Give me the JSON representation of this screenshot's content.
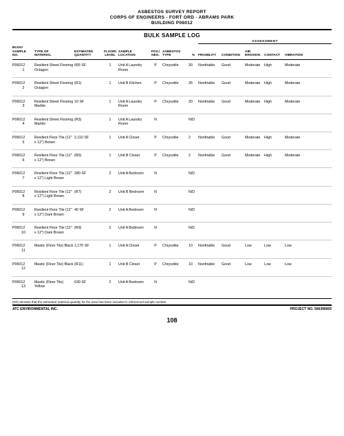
{
  "header": {
    "line1": "ASBESTOS SURVEY REPORT",
    "line2": "CORPS OF ENGINEERS - FORT ORD - ABRAMS PARK",
    "line3": "BUILDING P06012"
  },
  "title": "BULK SAMPLE LOG",
  "columns": {
    "c1a": "BLDG/",
    "c1b": "SAMPLE",
    "c1c": "NO.",
    "c2a": "TYPE OF",
    "c2b": "MATERIAL",
    "c3a": "ESTIMATED",
    "c3b": "QUANTITY",
    "c4a": "FLOOR/",
    "c4b": "LEVEL",
    "c5a": "SAMPLE",
    "c5b": "LOCATION",
    "c6a": "POS./",
    "c6b": "NEG.",
    "c7a": "ASBESTOS",
    "c7b": "TYPE",
    "c8": "%",
    "assess": "ASSESSMENT",
    "a1": "FRIABILITY",
    "a2": "CONDITION",
    "a3a": "AIR",
    "a3b": "EROSION",
    "a4": "CONTACT",
    "a5": "VIBRATION"
  },
  "rows": [
    {
      "bldg": "P06012",
      "num": "1",
      "mat": "Resilient Sheet Flooring Octagon",
      "qty": "665 SF",
      "lvl": "1",
      "loc": "Unit A Laundry Room",
      "pn": "P",
      "type": "Chrysotile",
      "pct": "30",
      "fri": "Nonfriable",
      "cond": "Good",
      "air": "Moderate",
      "con": "High",
      "vib": "Moderate"
    },
    {
      "bldg": "P06012",
      "num": "2",
      "mat": "Resilient Sheet Flooring Octagon",
      "qty": "(R1)",
      "lvl": "1",
      "loc": "Unit B Kitchen",
      "pn": "P",
      "type": "Chrysotile",
      "pct": "35",
      "fri": "Nonfriable",
      "cond": "Good",
      "air": "Moderate",
      "con": "High",
      "vib": "Moderate"
    },
    {
      "bldg": "P06012",
      "num": "3",
      "mat": "Resilient Sheet Flooring Marble",
      "qty": "10 SF",
      "lvl": "1",
      "loc": "Unit A Laundry Room",
      "pn": "P",
      "type": "Chrysotile",
      "pct": "20",
      "fri": "Nonfriable",
      "cond": "Good",
      "air": "Moderate",
      "con": "High",
      "vib": "Moderate"
    },
    {
      "bldg": "P06012",
      "num": "4",
      "mat": "Resilient Sheet Flooring Marble",
      "qty": "(R3)",
      "lvl": "1",
      "loc": "Unit A Laundry Room",
      "pn": "N",
      "type": "",
      "pct": "N/D",
      "fri": "",
      "cond": "",
      "air": "",
      "con": "",
      "vib": ""
    },
    {
      "bldg": "P06012",
      "num": "5",
      "mat": "Resilient Floor Tile (12\" x 12\") Brown",
      "qty": "2,110 SF",
      "lvl": "1",
      "loc": "Unit A Closet",
      "pn": "P",
      "type": "Chrysotile",
      "pct": "2",
      "fri": "Nonfriable",
      "cond": "Good",
      "air": "Moderate",
      "con": "High",
      "vib": "Moderate"
    },
    {
      "bldg": "P06012",
      "num": "6",
      "mat": "Resilient Floor Tile (12\" x 12\") Brown",
      "qty": "(R5)",
      "lvl": "1",
      "loc": "Unit B Closet",
      "pn": "P",
      "type": "Chrysotile",
      "pct": "2",
      "fri": "Nonfriable",
      "cond": "Good",
      "air": "Moderate",
      "con": "High",
      "vib": "Moderate"
    },
    {
      "bldg": "P06012",
      "num": "7",
      "mat": "Resilient Floor Tile (12\" x 12\") Light Brown",
      "qty": "280 SF",
      "lvl": "2",
      "loc": "Unit A Bedroom",
      "pn": "N",
      "type": "",
      "pct": "N/D",
      "fri": "",
      "cond": "",
      "air": "",
      "con": "",
      "vib": ""
    },
    {
      "bldg": "P06012",
      "num": "8",
      "mat": "Resilient Floor Tile (12\" x 12\") Light Brown",
      "qty": "(R7)",
      "lvl": "2",
      "loc": "Unit B Bedroom",
      "pn": "N",
      "type": "",
      "pct": "N/D",
      "fri": "",
      "cond": "",
      "air": "",
      "con": "",
      "vib": ""
    },
    {
      "bldg": "P06012",
      "num": "9",
      "mat": "Resilient Floor Tile (12\" x 12\") Dark Brown",
      "qty": "40 SF",
      "lvl": "2",
      "loc": "Unit A Bedroom",
      "pn": "N",
      "type": "",
      "pct": "N/D",
      "fri": "",
      "cond": "",
      "air": "",
      "con": "",
      "vib": ""
    },
    {
      "bldg": "P06012",
      "num": "10",
      "mat": "Resilient Floor Tile (12\" x 12\") Dark Brown",
      "qty": "(R9)",
      "lvl": "2",
      "loc": "Unit A Bedroom",
      "pn": "N",
      "type": "",
      "pct": "N/D",
      "fri": "",
      "cond": "",
      "air": "",
      "con": "",
      "vib": ""
    },
    {
      "bldg": "P06012",
      "num": "11",
      "mat": "Mastic (Floor Tile) Black",
      "qty": "1,170 SF",
      "lvl": "1",
      "loc": "Unit A Closet",
      "pn": "P",
      "type": "Chrysotile",
      "pct": "10",
      "fri": "Nonfriable",
      "cond": "Good",
      "air": "Low",
      "con": "Low",
      "vib": "Low"
    },
    {
      "bldg": "P06012",
      "num": "12",
      "mat": "Mastic (Floor Tile) Black",
      "qty": "(R11)",
      "lvl": "1",
      "loc": "Unit B Closet",
      "pn": "P",
      "type": "Chrysotile",
      "pct": "10",
      "fri": "Nonfriable",
      "cond": "Good",
      "air": "Low",
      "con": "Low",
      "vib": "Low"
    },
    {
      "bldg": "P06012",
      "num": "13",
      "mat": "Mastic (Floor Tile) Yellow",
      "qty": "630 SF",
      "lvl": "2",
      "loc": "Unit A Bedroom",
      "pn": "N",
      "type": "",
      "pct": "N/D",
      "fri": "",
      "cond": "",
      "air": "",
      "con": "",
      "vib": ""
    }
  ],
  "footnote": "(R#) denotes that the estimated material quantity for the area has been included in referenced sample number.",
  "footer": {
    "left": "ATC ENVIRONMENTAL INC.",
    "right": "PROJECT NO. 506390005"
  },
  "pagenum": "108"
}
